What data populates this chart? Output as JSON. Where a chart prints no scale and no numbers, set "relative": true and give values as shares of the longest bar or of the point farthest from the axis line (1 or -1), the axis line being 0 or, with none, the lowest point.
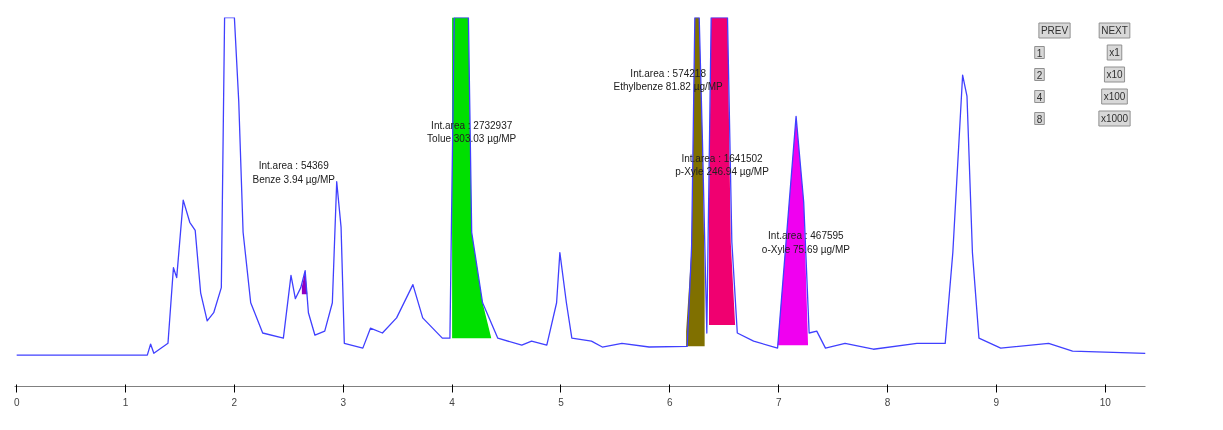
{
  "chart_data": {
    "type": "line",
    "relative": true,
    "xlim": [
      -0.02,
      10.37
    ],
    "xticks": [
      0,
      1,
      2,
      3,
      4,
      5,
      6,
      7,
      8,
      9,
      10
    ],
    "grid": false,
    "tick_labels": "x",
    "series": [
      {
        "color": "#4040ff",
        "x": [
          0,
          1.2,
          1.23,
          1.26,
          1.39,
          1.44,
          1.47,
          1.53,
          1.59,
          1.64,
          1.69,
          1.75,
          1.81,
          1.88,
          1.91,
          2.0,
          2.04,
          2.08,
          2.15,
          2.26,
          2.45,
          2.52,
          2.56,
          2.61,
          2.65,
          2.68,
          2.74,
          2.83,
          2.9,
          2.94,
          2.98,
          3.01,
          3.18,
          3.25,
          3.36,
          3.49,
          3.64,
          3.73,
          3.91,
          3.98,
          4.02,
          4.15,
          4.18,
          4.28,
          4.42,
          4.64,
          4.73,
          4.87,
          4.96,
          4.99,
          5.05,
          5.1,
          5.28,
          5.38,
          5.56,
          5.81,
          6.16,
          6.2,
          6.23,
          6.27,
          6.3,
          6.34,
          6.38,
          6.53,
          6.57,
          6.62,
          6.77,
          6.99,
          7.06,
          7.16,
          7.23,
          7.28,
          7.35,
          7.43,
          7.61,
          7.87,
          8.27,
          8.53,
          8.6,
          8.69,
          8.73,
          8.78,
          8.84,
          9.04,
          9.48,
          9.7,
          10.37
        ],
        "values": [
          0.085,
          0.085,
          0.115,
          0.09,
          0.117,
          0.322,
          0.295,
          0.505,
          0.445,
          0.423,
          0.254,
          0.178,
          0.2,
          0.268,
          1,
          1,
          0.773,
          0.418,
          0.227,
          0.145,
          0.131,
          0.301,
          0.238,
          0.268,
          0.314,
          0.2,
          0.139,
          0.15,
          0.227,
          0.555,
          0.432,
          0.117,
          0.104,
          0.158,
          0.145,
          0.186,
          0.276,
          0.186,
          0.131,
          0.131,
          1,
          1,
          0.418,
          0.227,
          0.131,
          0.112,
          0.123,
          0.112,
          0.227,
          0.363,
          0.227,
          0.131,
          0.123,
          0.107,
          0.117,
          0.107,
          0.109,
          0.377,
          1,
          1,
          0.664,
          0.145,
          1,
          1,
          0.391,
          0.145,
          0.123,
          0.104,
          0.363,
          0.732,
          0.5,
          0.145,
          0.15,
          0.104,
          0.117,
          0.101,
          0.117,
          0.117,
          0.363,
          0.844,
          0.787,
          0.363,
          0.131,
          0.104,
          0.117,
          0.096,
          0.09
        ]
      },
      {
        "type": "area",
        "color": "#9000c0",
        "x": [
          2.62,
          2.62,
          2.65,
          2.67
        ],
        "values": [
          0.25,
          0.27,
          0.314,
          0.25
        ]
      },
      {
        "type": "area",
        "color": "#00e000",
        "x": [
          4.0,
          4.0,
          4.02,
          4.15,
          4.18,
          4.28,
          4.36
        ],
        "values": [
          0.131,
          1,
          1,
          1,
          0.418,
          0.227,
          0.131
        ]
      },
      {
        "type": "area",
        "color": "#807000",
        "x": [
          6.15,
          6.15,
          6.2,
          6.23,
          6.27,
          6.3,
          6.32,
          6.32
        ],
        "values": [
          0.109,
          0.15,
          0.377,
          1,
          1,
          0.664,
          0.3,
          0.109
        ]
      },
      {
        "type": "area",
        "color": "#f00070",
        "x": [
          6.36,
          6.36,
          6.38,
          6.53,
          6.56,
          6.6
        ],
        "values": [
          0.167,
          0.5,
          1,
          1,
          0.391,
          0.167
        ]
      },
      {
        "type": "area",
        "color": "#f000f0",
        "x": [
          6.99,
          7.06,
          7.16,
          7.23,
          7.27
        ],
        "values": [
          0.112,
          0.363,
          0.732,
          0.5,
          0.112
        ]
      }
    ],
    "annotations": [
      "Int.area : 54369\nBenze 3.94 µg/MP",
      "Int.area : 2732937\nTolue 303.03 µg/MP",
      "Int.area : 574218\nEthylbenze 81.82 µg/MP",
      "Int.area : 1641502\np-Xyle 246.94 µg/MP",
      "Int.area : 467595\no-Xyle 75.69 µg/MP",
      "PREV",
      "NEXT",
      "1",
      "x1",
      "2",
      "x10",
      "4",
      "x100",
      "8",
      "x1000"
    ]
  }
}
